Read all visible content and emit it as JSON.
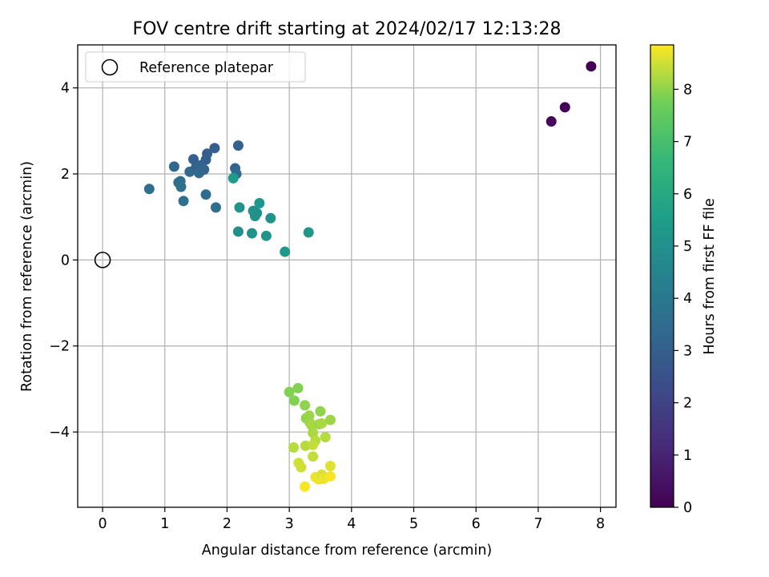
{
  "chart_data": {
    "type": "scatter",
    "title": "FOV centre drift starting at 2024/02/17 12:13:28",
    "xlabel": "Angular distance from reference (arcmin)",
    "ylabel": "Rotation from reference (arcmin)",
    "xlim": [
      -0.4,
      8.25
    ],
    "ylim": [
      -5.75,
      5.0
    ],
    "xticks": [
      0,
      1,
      2,
      3,
      4,
      5,
      6,
      7,
      8
    ],
    "yticks": [
      -4,
      -2,
      0,
      2,
      4
    ],
    "ytick_labels": [
      "−4",
      "−2",
      "0",
      "2",
      "4"
    ],
    "grid": true,
    "legend": {
      "location": "upper-left",
      "entries": [
        "Reference platepar"
      ]
    },
    "reference_point": {
      "x": 0,
      "y": 0
    },
    "colorbar": {
      "label": "Hours from first FF file",
      "range": [
        0,
        8.85
      ],
      "ticks": [
        0,
        1,
        2,
        3,
        4,
        5,
        6,
        7,
        8
      ],
      "colormap": "viridis"
    },
    "points": [
      {
        "x": 7.85,
        "y": 4.5,
        "c": 0.0
      },
      {
        "x": 7.43,
        "y": 3.55,
        "c": 0.1
      },
      {
        "x": 7.21,
        "y": 3.22,
        "c": 0.2
      },
      {
        "x": 0.75,
        "y": 1.65,
        "c": 3.6
      },
      {
        "x": 1.15,
        "y": 2.17,
        "c": 3.3
      },
      {
        "x": 1.22,
        "y": 1.8,
        "c": 3.5
      },
      {
        "x": 1.25,
        "y": 1.83,
        "c": 3.6
      },
      {
        "x": 1.26,
        "y": 1.7,
        "c": 3.7
      },
      {
        "x": 1.3,
        "y": 1.37,
        "c": 3.6
      },
      {
        "x": 1.4,
        "y": 2.05,
        "c": 3.4
      },
      {
        "x": 1.46,
        "y": 2.34,
        "c": 3.0
      },
      {
        "x": 1.5,
        "y": 2.15,
        "c": 3.1
      },
      {
        "x": 1.55,
        "y": 2.02,
        "c": 3.4
      },
      {
        "x": 1.58,
        "y": 2.2,
        "c": 3.2
      },
      {
        "x": 1.63,
        "y": 2.1,
        "c": 3.3
      },
      {
        "x": 1.66,
        "y": 2.33,
        "c": 3.0
      },
      {
        "x": 1.68,
        "y": 2.47,
        "c": 3.0
      },
      {
        "x": 1.66,
        "y": 1.52,
        "c": 3.5
      },
      {
        "x": 1.8,
        "y": 2.6,
        "c": 3.0
      },
      {
        "x": 1.82,
        "y": 1.22,
        "c": 3.6
      },
      {
        "x": 2.13,
        "y": 2.13,
        "c": 3.2
      },
      {
        "x": 2.15,
        "y": 2.0,
        "c": 3.4
      },
      {
        "x": 2.18,
        "y": 2.66,
        "c": 3.1
      },
      {
        "x": 2.1,
        "y": 1.9,
        "c": 5.4
      },
      {
        "x": 2.2,
        "y": 1.22,
        "c": 5.1
      },
      {
        "x": 2.18,
        "y": 0.66,
        "c": 4.9
      },
      {
        "x": 2.4,
        "y": 0.62,
        "c": 5.0
      },
      {
        "x": 2.42,
        "y": 1.14,
        "c": 5.0
      },
      {
        "x": 2.45,
        "y": 1.02,
        "c": 5.1
      },
      {
        "x": 2.48,
        "y": 1.09,
        "c": 5.0
      },
      {
        "x": 2.52,
        "y": 1.32,
        "c": 5.2
      },
      {
        "x": 2.63,
        "y": 0.56,
        "c": 5.1
      },
      {
        "x": 2.7,
        "y": 0.97,
        "c": 5.1
      },
      {
        "x": 2.93,
        "y": 0.19,
        "c": 5.3
      },
      {
        "x": 3.31,
        "y": 0.64,
        "c": 5.2
      },
      {
        "x": 3.0,
        "y": -3.07,
        "c": 7.9
      },
      {
        "x": 3.08,
        "y": -3.27,
        "c": 7.9
      },
      {
        "x": 3.14,
        "y": -2.98,
        "c": 7.9
      },
      {
        "x": 3.25,
        "y": -3.38,
        "c": 8.0
      },
      {
        "x": 3.27,
        "y": -3.68,
        "c": 8.0
      },
      {
        "x": 3.32,
        "y": -3.62,
        "c": 8.1
      },
      {
        "x": 3.33,
        "y": -3.78,
        "c": 8.1
      },
      {
        "x": 3.36,
        "y": -3.85,
        "c": 8.2
      },
      {
        "x": 3.38,
        "y": -4.02,
        "c": 8.2
      },
      {
        "x": 3.42,
        "y": -4.2,
        "c": 8.3
      },
      {
        "x": 3.48,
        "y": -3.82,
        "c": 8.1
      },
      {
        "x": 3.5,
        "y": -3.52,
        "c": 8.0
      },
      {
        "x": 3.52,
        "y": -3.8,
        "c": 8.2
      },
      {
        "x": 3.58,
        "y": -4.12,
        "c": 8.3
      },
      {
        "x": 3.66,
        "y": -3.72,
        "c": 8.1
      },
      {
        "x": 3.07,
        "y": -4.36,
        "c": 8.3
      },
      {
        "x": 3.26,
        "y": -4.32,
        "c": 8.3
      },
      {
        "x": 3.38,
        "y": -4.3,
        "c": 8.4
      },
      {
        "x": 3.38,
        "y": -4.57,
        "c": 8.4
      },
      {
        "x": 3.15,
        "y": -4.72,
        "c": 8.5
      },
      {
        "x": 3.19,
        "y": -4.82,
        "c": 8.5
      },
      {
        "x": 3.42,
        "y": -5.05,
        "c": 8.7
      },
      {
        "x": 3.47,
        "y": -5.1,
        "c": 8.7
      },
      {
        "x": 3.52,
        "y": -4.99,
        "c": 8.6
      },
      {
        "x": 3.55,
        "y": -5.09,
        "c": 8.7
      },
      {
        "x": 3.66,
        "y": -4.79,
        "c": 8.6
      },
      {
        "x": 3.66,
        "y": -5.03,
        "c": 8.8
      },
      {
        "x": 3.25,
        "y": -5.27,
        "c": 8.8
      }
    ]
  }
}
